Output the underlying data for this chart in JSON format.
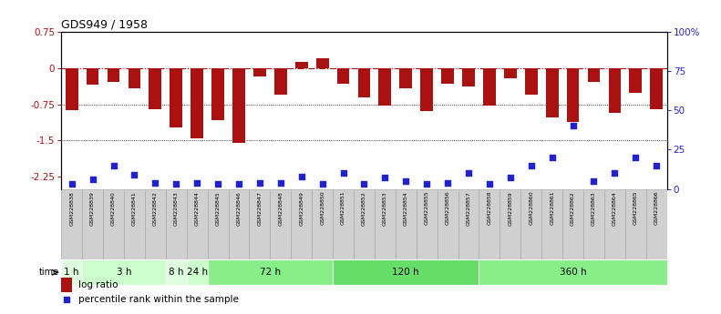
{
  "title": "GDS949 / 1958",
  "samples": [
    "GSM228838",
    "GSM228839",
    "GSM228840",
    "GSM228841",
    "GSM228842",
    "GSM228843",
    "GSM228844",
    "GSM228845",
    "GSM228846",
    "GSM228847",
    "GSM228848",
    "GSM228849",
    "GSM228850",
    "GSM228851",
    "GSM228852",
    "GSM228853",
    "GSM228854",
    "GSM228855",
    "GSM228856",
    "GSM228857",
    "GSM228858",
    "GSM228859",
    "GSM228860",
    "GSM228861",
    "GSM228862",
    "GSM228863",
    "GSM228864",
    "GSM228865",
    "GSM228866"
  ],
  "log_ratio": [
    -0.87,
    -0.35,
    -0.28,
    -0.42,
    -0.85,
    -1.22,
    -1.45,
    -1.08,
    -1.55,
    -0.18,
    -0.55,
    0.12,
    0.2,
    -0.32,
    -0.6,
    -0.78,
    -0.42,
    -0.88,
    -0.32,
    -0.38,
    -0.78,
    -0.22,
    -0.55,
    -1.02,
    -1.12,
    -0.28,
    -0.92,
    -0.52,
    -0.85
  ],
  "percentile_rank": [
    3,
    6,
    15,
    9,
    4,
    3,
    4,
    3,
    3,
    4,
    4,
    8,
    3,
    10,
    3,
    7,
    5,
    3,
    4,
    10,
    3,
    7,
    15,
    20,
    40,
    5,
    10,
    20,
    15
  ],
  "ylim_left": [
    -2.5,
    0.75
  ],
  "ylim_right": [
    0,
    100
  ],
  "bar_color": "#aa1111",
  "dot_color": "#2222cc",
  "background_color": "#ffffff",
  "grid_color": "#aaaaaa",
  "sample_box_color": "#d0d0d0",
  "sample_box_edge": "#aaaaaa",
  "time_groups": [
    {
      "label": "1 h",
      "start": 0,
      "end": 1,
      "color": "#ddffdd"
    },
    {
      "label": "3 h",
      "start": 1,
      "end": 5,
      "color": "#ccffcc"
    },
    {
      "label": "8 h",
      "start": 5,
      "end": 6,
      "color": "#ddffdd"
    },
    {
      "label": "24 h",
      "start": 6,
      "end": 7,
      "color": "#ccffcc"
    },
    {
      "label": "72 h",
      "start": 7,
      "end": 13,
      "color": "#88ee88"
    },
    {
      "label": "120 h",
      "start": 13,
      "end": 20,
      "color": "#66dd66"
    },
    {
      "label": "360 h",
      "start": 20,
      "end": 29,
      "color": "#88ee88"
    }
  ],
  "legend_bar_label": "log ratio",
  "legend_dot_label": "percentile rank within the sample"
}
